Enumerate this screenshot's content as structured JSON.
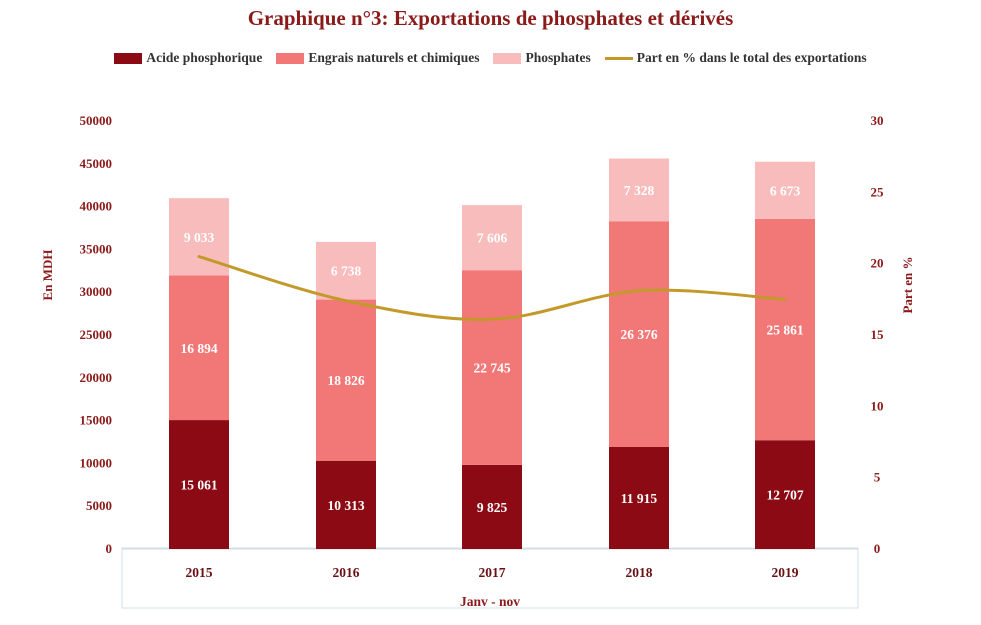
{
  "colors": {
    "acide": "#8b0a14",
    "engrais": "#f27878",
    "phosphates": "#f9bcbc",
    "line": "#c39a2a",
    "title": "#8b1a1a",
    "axis_text": "#8b1a1a",
    "cat_text": "#6a0f14",
    "frame": "#cfe0f0"
  },
  "chart_data": {
    "type": "bar",
    "stacked": true,
    "title": "Graphique n°3: Exportations  de phosphates et dérivés",
    "xlabel": "Janv - nov",
    "ylabel": "En MDH",
    "y2label": "Part en %",
    "categories": [
      "2015",
      "2016",
      "2017",
      "2018",
      "2019"
    ],
    "ylim": [
      0,
      50000
    ],
    "y_ticks": [
      "0",
      "5000",
      "10000",
      "15000",
      "20000",
      "25000",
      "30000",
      "35000",
      "40000",
      "45000",
      "50000"
    ],
    "y2lim": [
      0,
      30
    ],
    "y2_ticks": [
      "0",
      "5",
      "10",
      "15",
      "20",
      "25",
      "30"
    ],
    "series": [
      {
        "name": "Acide phosphorique",
        "color_key": "acide",
        "values": [
          15061,
          10313,
          9825,
          11915,
          12707
        ],
        "labels": [
          "15 061",
          "10 313",
          "9 825",
          "11 915",
          "12 707"
        ]
      },
      {
        "name": "Engrais naturels et chimiques",
        "color_key": "engrais",
        "values": [
          16894,
          18826,
          22745,
          26376,
          25861
        ],
        "labels": [
          "16 894",
          "18 826",
          "22 745",
          "26 376",
          "25 861"
        ]
      },
      {
        "name": "Phosphates",
        "color_key": "phosphates",
        "values": [
          9033,
          6738,
          7606,
          7328,
          6673
        ],
        "labels": [
          "9 033",
          "6 738",
          "7 606",
          "7 328",
          "6 673"
        ]
      }
    ],
    "line_series": {
      "name": "Part en % dans le total des exportations",
      "color_key": "line",
      "axis": "right",
      "values": [
        20.5,
        17.4,
        16.1,
        18.1,
        17.5
      ]
    },
    "grid": false,
    "legend_position": "top"
  }
}
